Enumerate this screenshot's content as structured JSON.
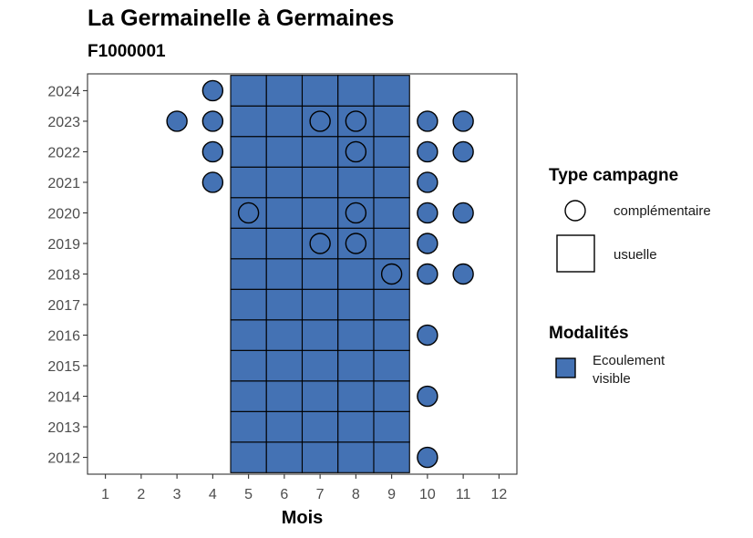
{
  "header": {
    "title": "La Germainelle à Germaines",
    "subtitle": "F1000001"
  },
  "chart_data": {
    "type": "heatmap",
    "title": "La Germainelle à Germaines",
    "subtitle": "F1000001",
    "xlabel": "Mois",
    "ylabel": "",
    "x_ticks": [
      1,
      2,
      3,
      4,
      5,
      6,
      7,
      8,
      9,
      10,
      11,
      12
    ],
    "y_ticks": [
      2024,
      2023,
      2022,
      2021,
      2020,
      2019,
      2018,
      2017,
      2016,
      2015,
      2014,
      2013,
      2012
    ],
    "xlim": [
      0.5,
      12.5
    ],
    "ylim": [
      2011.45,
      2024.55
    ],
    "grid": false,
    "fill_color": "#4472B4",
    "usuelle_months": [
      5,
      6,
      7,
      8,
      9
    ],
    "usuelle_years": [
      2012,
      2013,
      2014,
      2015,
      2016,
      2017,
      2018,
      2019,
      2020,
      2021,
      2022,
      2023,
      2024
    ],
    "usuelle_modalite": "Ecoulement visible",
    "complementaire_points": [
      {
        "year": 2024,
        "month": 4,
        "filled": true
      },
      {
        "year": 2023,
        "month": 3,
        "filled": true
      },
      {
        "year": 2023,
        "month": 4,
        "filled": true
      },
      {
        "year": 2023,
        "month": 7,
        "filled": false
      },
      {
        "year": 2023,
        "month": 8,
        "filled": false
      },
      {
        "year": 2023,
        "month": 10,
        "filled": true
      },
      {
        "year": 2023,
        "month": 11,
        "filled": true
      },
      {
        "year": 2022,
        "month": 4,
        "filled": true
      },
      {
        "year": 2022,
        "month": 8,
        "filled": false
      },
      {
        "year": 2022,
        "month": 10,
        "filled": true
      },
      {
        "year": 2022,
        "month": 11,
        "filled": true
      },
      {
        "year": 2021,
        "month": 4,
        "filled": true
      },
      {
        "year": 2021,
        "month": 10,
        "filled": true
      },
      {
        "year": 2020,
        "month": 5,
        "filled": false
      },
      {
        "year": 2020,
        "month": 8,
        "filled": false
      },
      {
        "year": 2020,
        "month": 10,
        "filled": true
      },
      {
        "year": 2020,
        "month": 11,
        "filled": true
      },
      {
        "year": 2019,
        "month": 7,
        "filled": false
      },
      {
        "year": 2019,
        "month": 8,
        "filled": false
      },
      {
        "year": 2019,
        "month": 10,
        "filled": true
      },
      {
        "year": 2018,
        "month": 9,
        "filled": false
      },
      {
        "year": 2018,
        "month": 10,
        "filled": true
      },
      {
        "year": 2018,
        "month": 11,
        "filled": true
      },
      {
        "year": 2016,
        "month": 10,
        "filled": true
      },
      {
        "year": 2014,
        "month": 10,
        "filled": true
      },
      {
        "year": 2012,
        "month": 10,
        "filled": true
      }
    ],
    "legend": {
      "position": "right",
      "type_title": "Type campagne",
      "type_items": [
        "complémentaire",
        "usuelle"
      ],
      "modalite_title": "Modalités",
      "modalite_items": [
        "Ecoulement visible"
      ]
    }
  }
}
